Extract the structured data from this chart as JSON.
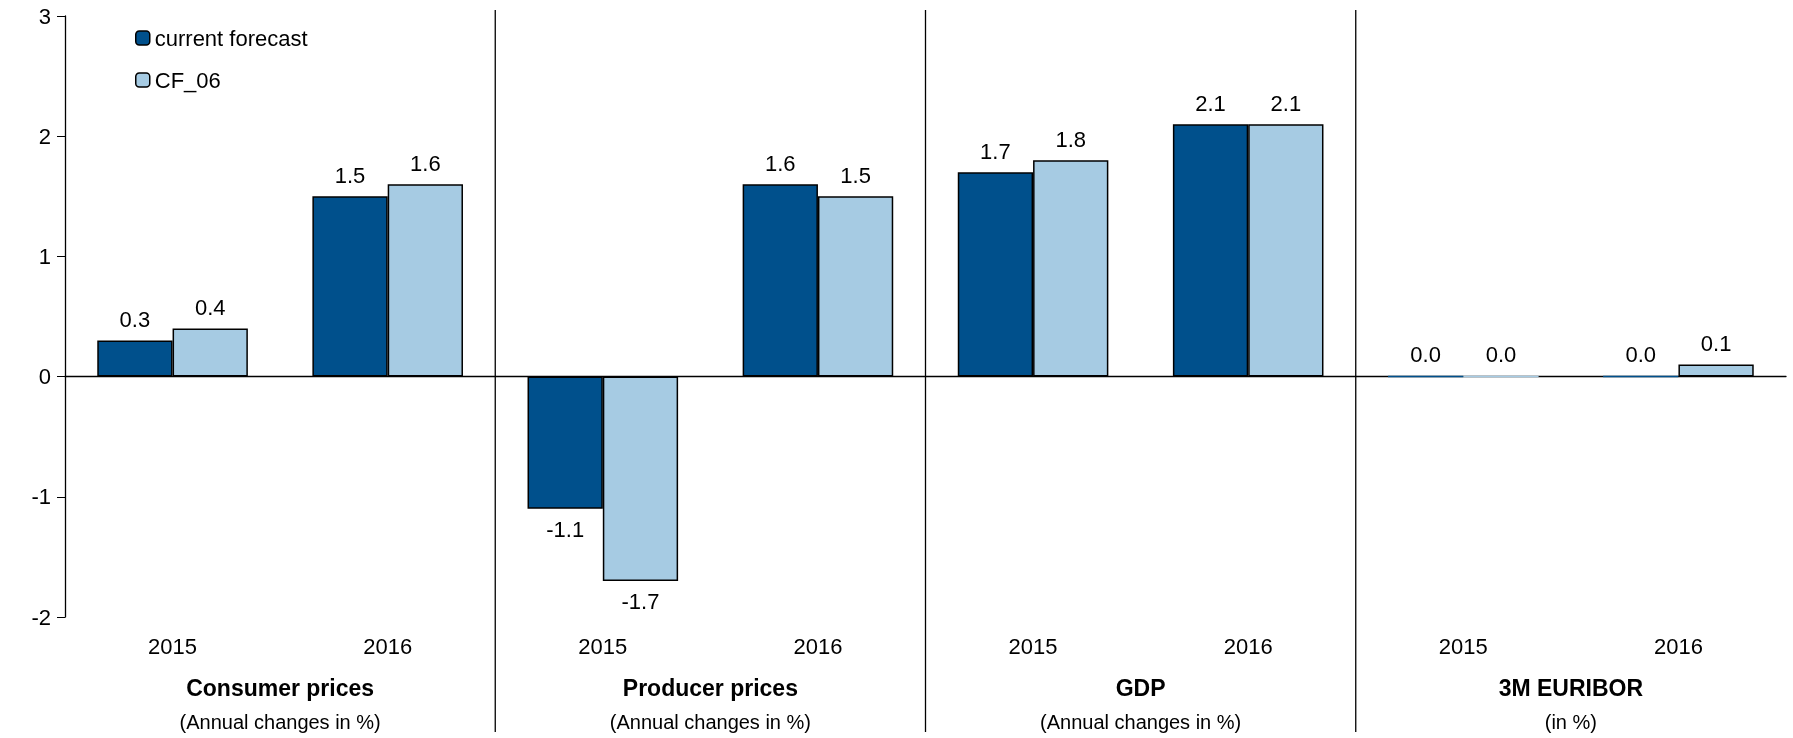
{
  "chart_data": {
    "type": "bar",
    "categories": [
      "2015",
      "2016",
      "2015",
      "2016",
      "2015",
      "2016",
      "2015",
      "2016"
    ],
    "series": [
      {
        "name": "current forecast",
        "color": "#00508c",
        "values": [
          0.3,
          1.5,
          -1.1,
          1.6,
          1.7,
          2.1,
          0.0,
          0.0
        ],
        "value_labels": [
          "0.3",
          "1.5",
          "-1.1",
          "1.6",
          "1.7",
          "2.1",
          "0.0",
          "0.0"
        ]
      },
      {
        "name": "CF_06",
        "color": "#a6cbe3",
        "values": [
          0.4,
          1.6,
          -1.7,
          1.5,
          1.8,
          2.1,
          0.0,
          0.1
        ],
        "value_labels": [
          "0.4",
          "1.6",
          "-1.7",
          "1.5",
          "1.8",
          "2.1",
          "0.0",
          "0.1"
        ]
      }
    ],
    "ylim": [
      -2,
      3
    ],
    "yticks": [
      -2,
      -1,
      0,
      1,
      2,
      3
    ],
    "legend": "top left",
    "annotations": [
      "Consumer prices",
      "(Annual changes in %)",
      "Producer prices",
      "(Annual changes in %)",
      "GDP",
      "(Annual changes in %)",
      "3M EURIBOR",
      "(in %)"
    ]
  }
}
